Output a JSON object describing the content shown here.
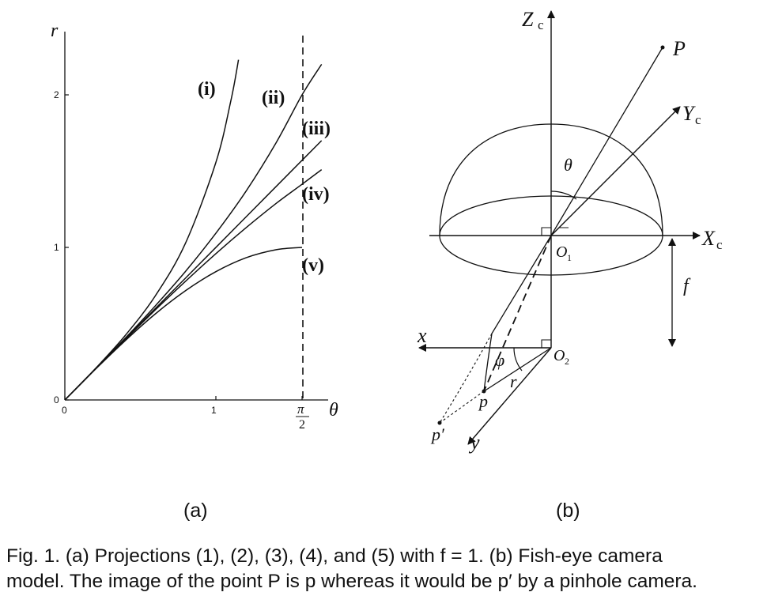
{
  "panel_a": {
    "y_axis_label": "r",
    "x_axis_label": "θ",
    "y_ticks": [
      "0",
      "1",
      "2"
    ],
    "x_ticks": [
      "0",
      "1"
    ],
    "x_pi_numerator": "π",
    "x_pi_denominator": "2",
    "curve_labels": [
      "(i)",
      "(ii)",
      "(iii)",
      "(iv)",
      "(v)"
    ],
    "sublabel": "(a)"
  },
  "panel_b": {
    "axis_Zc": "Z",
    "axis_Yc": "Y",
    "axis_Xc": "X",
    "axis_sub_c": "c",
    "point_P": "P",
    "angle_theta": "θ",
    "origin_O1": "O",
    "origin_O1_sub": "1",
    "origin_O2": "O",
    "origin_O2_sub": "2",
    "focal_f": "f",
    "axis_x": "x",
    "axis_y": "y",
    "angle_phi": "φ",
    "radius_r": "r",
    "image_point_p": "p",
    "pinhole_point": "p′",
    "sublabel": "(b)"
  },
  "caption": {
    "line1": "Fig. 1. (a) Projections (1), (2), (3), (4), and (5) with f = 1. (b) Fish-eye camera",
    "line2": "model. The image of the point P is p whereas it would be p′ by a pinhole camera."
  },
  "chart_data": {
    "type": "line",
    "title": "",
    "xlabel": "θ",
    "ylabel": "r",
    "xlim": [
      0,
      1.5708
    ],
    "ylim": [
      0,
      2.4
    ],
    "grid": false,
    "x_ticks": [
      "0",
      "1",
      "π/2"
    ],
    "y_ticks": [
      "0",
      "1",
      "2"
    ],
    "series": [
      {
        "name": "(i)",
        "x": [
          0,
          0.2,
          0.4,
          0.6,
          0.8,
          1.0,
          1.1,
          1.15
        ],
        "values": [
          0,
          0.203,
          0.423,
          0.684,
          1.03,
          1.557,
          1.965,
          2.23
        ]
      },
      {
        "name": "(ii)",
        "x": [
          0,
          0.2,
          0.4,
          0.6,
          0.8,
          1.0,
          1.2,
          1.4,
          1.5708,
          1.7
        ],
        "values": [
          0,
          0.201,
          0.405,
          0.618,
          0.844,
          1.093,
          1.369,
          1.688,
          2.0,
          2.2
        ]
      },
      {
        "name": "(iii)",
        "x": [
          0,
          0.4,
          0.8,
          1.2,
          1.5708,
          1.7
        ],
        "values": [
          0,
          0.4,
          0.8,
          1.2,
          1.571,
          1.7
        ]
      },
      {
        "name": "(iv)",
        "x": [
          0,
          0.2,
          0.4,
          0.6,
          0.8,
          1.0,
          1.2,
          1.4,
          1.5708,
          1.7
        ],
        "values": [
          0,
          0.2,
          0.397,
          0.591,
          0.779,
          0.959,
          1.129,
          1.289,
          1.414,
          1.51
        ]
      },
      {
        "name": "(v)",
        "x": [
          0,
          0.2,
          0.4,
          0.6,
          0.8,
          1.0,
          1.2,
          1.4,
          1.5708
        ],
        "values": [
          0,
          0.199,
          0.389,
          0.565,
          0.717,
          0.841,
          0.932,
          0.985,
          1.0
        ]
      }
    ],
    "annotations": [
      "vertical dashed line at θ = π/2"
    ]
  }
}
